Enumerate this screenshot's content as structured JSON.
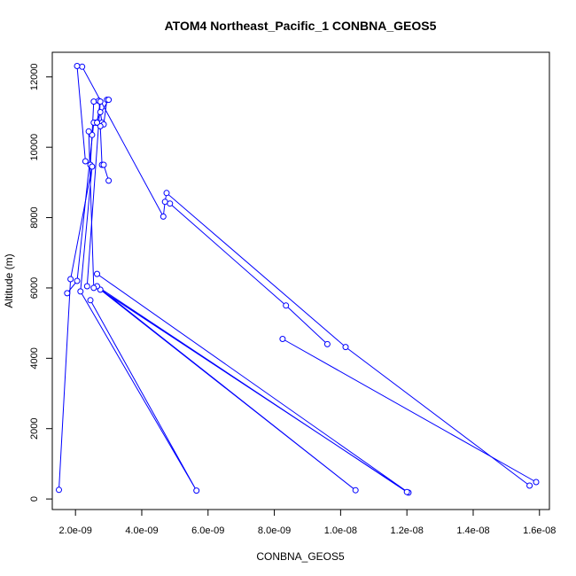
{
  "colors": {
    "series": "#0000ff",
    "axis": "#000000",
    "background": "#ffffff"
  },
  "chart_data": {
    "type": "line",
    "title": "ATOM4 Northeast_Pacific_1 CONBNA_GEOS5",
    "xlabel": "CONBNA_GEOS5",
    "ylabel": "Altitude (m)",
    "xlim": [
      1.3e-09,
      1.63e-08
    ],
    "ylim": [
      -300,
      12700
    ],
    "x_ticks": [
      {
        "value": 2e-09,
        "label": "2.0e-09"
      },
      {
        "value": 4e-09,
        "label": "4.0e-09"
      },
      {
        "value": 6e-09,
        "label": "6.0e-09"
      },
      {
        "value": 8e-09,
        "label": "8.0e-09"
      },
      {
        "value": 1e-08,
        "label": "1.0e-08"
      },
      {
        "value": 1.2e-08,
        "label": "1.2e-08"
      },
      {
        "value": 1.4e-08,
        "label": "1.4e-08"
      },
      {
        "value": 1.6e-08,
        "label": "1.6e-08"
      }
    ],
    "y_ticks": [
      {
        "value": 0,
        "label": "0"
      },
      {
        "value": 2000,
        "label": "2000"
      },
      {
        "value": 4000,
        "label": "4000"
      },
      {
        "value": 6000,
        "label": "6000"
      },
      {
        "value": 8000,
        "label": "8000"
      },
      {
        "value": 10000,
        "label": "10000"
      },
      {
        "value": 12000,
        "label": "12000"
      }
    ],
    "grid": false,
    "marker": "open-circle",
    "series": [
      {
        "points": [
          [
            1.57e-08,
            380
          ],
          [
            1.015e-08,
            4320
          ],
          [
            4.75e-09,
            8700
          ],
          [
            4.7e-09,
            8450
          ],
          [
            4.65e-09,
            8030
          ],
          [
            2.2e-09,
            12290
          ],
          [
            2.05e-09,
            12310
          ],
          [
            2.3e-09,
            9600
          ],
          [
            2.45e-09,
            9500
          ],
          [
            2.5e-09,
            10350
          ],
          [
            2.55e-09,
            11300
          ],
          [
            2.7e-09,
            11320
          ],
          [
            2.75e-09,
            11000
          ],
          [
            2.8e-09,
            10700
          ],
          [
            2.85e-09,
            10650
          ],
          [
            2.95e-09,
            11350
          ],
          [
            3e-09,
            11350
          ],
          [
            2.6e-09,
            10700
          ],
          [
            2.65e-09,
            10700
          ],
          [
            2.75e-09,
            10600
          ],
          [
            2.8e-09,
            9500
          ],
          [
            2.85e-09,
            9500
          ],
          [
            3e-09,
            9050
          ]
        ]
      },
      {
        "points": [
          [
            2.65e-09,
            6400
          ],
          [
            1.205e-08,
            180
          ],
          [
            2.75e-09,
            5950
          ],
          [
            1.045e-08,
            250
          ],
          [
            2.65e-09,
            6050
          ],
          [
            1.2e-08,
            200
          ]
        ]
      },
      {
        "points": [
          [
            2.45e-09,
            5650
          ],
          [
            5.65e-09,
            240
          ],
          [
            2.15e-09,
            5900
          ],
          [
            2.5e-09,
            9450
          ],
          [
            1.85e-09,
            6250
          ],
          [
            1.5e-09,
            260
          ]
        ]
      },
      {
        "points": [
          [
            1.75e-09,
            5850
          ],
          [
            2.05e-09,
            6200
          ],
          [
            2.55e-09,
            10700
          ],
          [
            2.65e-09,
            10700
          ],
          [
            2.75e-09,
            11300
          ],
          [
            2.35e-09,
            6050
          ]
        ]
      },
      {
        "points": [
          [
            4.85e-09,
            8400
          ],
          [
            8.35e-09,
            5500
          ],
          [
            9.6e-09,
            4400
          ]
        ]
      },
      {
        "points": [
          [
            8.25e-09,
            4550
          ],
          [
            1.59e-08,
            480
          ]
        ]
      },
      {
        "points": [
          [
            2.4e-09,
            10450
          ],
          [
            2.55e-09,
            6000
          ]
        ]
      }
    ]
  }
}
